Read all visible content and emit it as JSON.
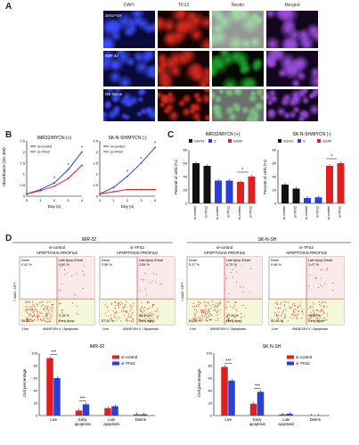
{
  "panel_labels": {
    "a": "A",
    "b": "B",
    "c": "C",
    "d": "D"
  },
  "micro": {
    "columns": [
      "DAPI",
      "TFS2",
      "Nestin",
      "Merged"
    ],
    "rows": [
      "SHSY-5Y",
      "IMR-32",
      "NB tissue"
    ]
  },
  "growth": {
    "left_title": "IMR32/MYCN (+)",
    "right_title": "SK-N-SH/MYCN (-)",
    "ylabel": "Absorbance (OD 450)",
    "xlabel": "Day (s)",
    "legend": [
      "si-control",
      "si-TFS2"
    ]
  },
  "cycle": {
    "left_title": "IMR32/MYCN (+)",
    "right_title": "SK-N-SH/MYCN (-)",
    "legend": [
      "G0/G1",
      "S",
      "G2/M"
    ],
    "ylabel": "Percent of cells (%)",
    "xticks": [
      "si-control",
      "si-TFS2",
      "si-control",
      "si-TFS2",
      "si-control",
      "si-TFS2"
    ]
  },
  "apoptosis": {
    "group_left": "IMR-32",
    "group_right": "SK-N-SH",
    "panels": [
      {
        "title": "si-control",
        "subtitle": "APOPTOSIS PROFILE",
        "q1": "0.42 %",
        "q2": "0.60 %",
        "q3": "95.52 %",
        "q4": "2.16 %"
      },
      {
        "title": "si-TFS2",
        "subtitle": "APOPTOSIS PROFILE",
        "q1": "0.58 %",
        "q2": "2.55 %",
        "q3": "57.07 %",
        "q4": "39.80 %"
      },
      {
        "title": "si-control",
        "subtitle": "APOPTOSIS PROFILE",
        "q1": "0.37 %",
        "q2": "0.75 %",
        "q3": "81.68 %",
        "q4": "17.20 %"
      },
      {
        "title": "si-TFS2",
        "subtitle": "APOPTOSIS PROFILE",
        "q1": "0.48 %",
        "q2": "1.47 %",
        "q3": "52.46 %",
        "q4": "45.59 %"
      }
    ],
    "quad_names": [
      "Dead",
      "Late Apop./Dead",
      "Live",
      "Early Apop."
    ],
    "ylabel": "7-AAD / DFY",
    "xlabel": "ANNEXIN V / Apoptosis"
  },
  "summary": {
    "left_title": "IMR-32",
    "right_title": "SK-N-SH",
    "ylabel": "Cell percentage",
    "categories": [
      "Live",
      "Early apoptosis",
      "Late apoptosis",
      "Debris"
    ],
    "legend": [
      "si-control",
      "si-TFS2"
    ]
  },
  "chart_data": [
    {
      "type": "line",
      "title": "IMR32/MYCN (+)",
      "xlabel": "Day (s)",
      "ylabel": "Absorbance (OD 450)",
      "x": [
        0,
        1,
        2,
        3,
        4
      ],
      "ylim": [
        0,
        2.5
      ],
      "series": [
        {
          "name": "si-control",
          "values": [
            0.1,
            0.3,
            0.6,
            1.2,
            2.0
          ]
        },
        {
          "name": "si-TFS2",
          "values": [
            0.1,
            0.25,
            0.45,
            0.8,
            1.4
          ]
        }
      ]
    },
    {
      "type": "line",
      "title": "SK-N-SH/MYCN (-)",
      "xlabel": "Day (s)",
      "ylabel": "Absorbance (OD 450)",
      "x": [
        0,
        1,
        2,
        3,
        4
      ],
      "ylim": [
        0,
        2.5
      ],
      "series": [
        {
          "name": "si-control",
          "values": [
            0.1,
            0.4,
            0.9,
            1.5,
            2.2
          ]
        },
        {
          "name": "si-TFS2",
          "values": [
            0.1,
            0.2,
            0.3,
            0.3,
            0.3
          ]
        }
      ]
    },
    {
      "type": "bar",
      "title": "IMR32/MYCN (+)",
      "ylabel": "Percent of cells (%)",
      "ylim": [
        0,
        80
      ],
      "categories": [
        "si-control",
        "si-TFS2",
        "si-control",
        "si-TFS2",
        "si-control",
        "si-TFS2"
      ],
      "values": [
        60,
        56,
        34,
        34,
        32,
        40
      ],
      "colors": [
        "#111111",
        "#111111",
        "#2a3fd6",
        "#2a3fd6",
        "#e02020",
        "#e02020"
      ]
    },
    {
      "type": "bar",
      "title": "SK-N-SH/MYCN (-)",
      "ylabel": "Percent of cells (%)",
      "ylim": [
        0,
        80
      ],
      "categories": [
        "si-control",
        "si-TFS2",
        "si-control",
        "si-TFS2",
        "si-control",
        "si-TFS2"
      ],
      "values": [
        28,
        22,
        8,
        9,
        56,
        60
      ],
      "colors": [
        "#111111",
        "#111111",
        "#2a3fd6",
        "#2a3fd6",
        "#e02020",
        "#e02020"
      ]
    },
    {
      "type": "bar",
      "title": "IMR-32",
      "ylabel": "Cell percentage",
      "ylim": [
        0,
        100
      ],
      "categories": [
        "Live",
        "Early apoptosis",
        "Late apoptosis",
        "Debris"
      ],
      "series": [
        {
          "name": "si-control",
          "values": [
            92,
            8,
            12,
            2
          ]
        },
        {
          "name": "si-TFS2",
          "values": [
            60,
            18,
            15,
            2
          ]
        }
      ]
    },
    {
      "type": "bar",
      "title": "SK-N-SH",
      "ylabel": "Cell percentage",
      "ylim": [
        0,
        100
      ],
      "categories": [
        "Live",
        "Early apoptosis",
        "Late apoptosis",
        "Debris"
      ],
      "series": [
        {
          "name": "si-control",
          "values": [
            78,
            19,
            2,
            0
          ]
        },
        {
          "name": "si-TFS2",
          "values": [
            56,
            38,
            3,
            0
          ]
        }
      ]
    }
  ],
  "colors": {
    "control": "#e02020",
    "knockdown": "#2a3fd6",
    "g1": "#111111"
  }
}
